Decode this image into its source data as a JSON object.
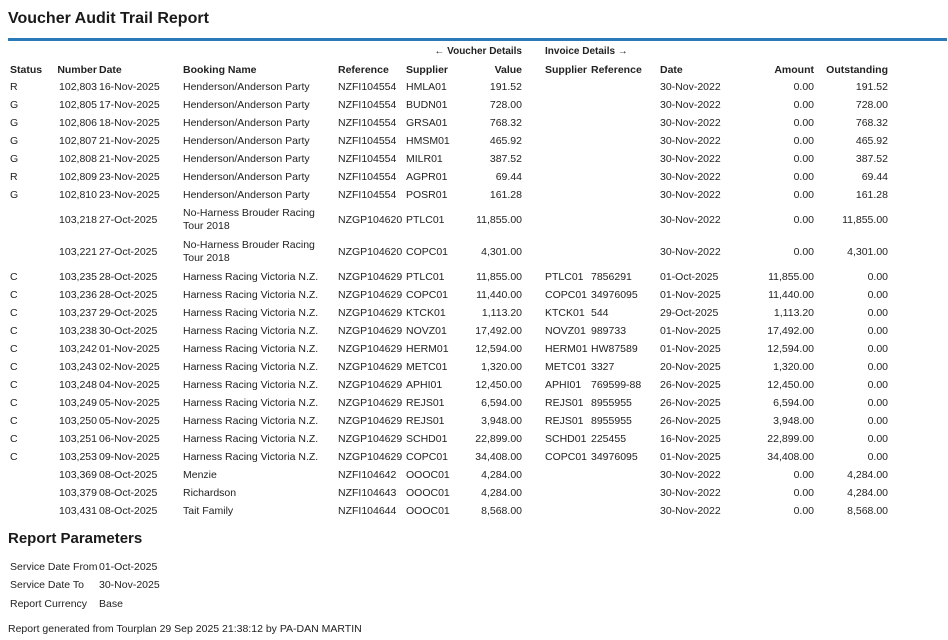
{
  "title": "Voucher Audit Trail Report",
  "group_headers": [
    "← Voucher Details",
    "Invoice Details →"
  ],
  "columns": [
    "Status",
    "Number",
    "Date",
    "Booking Name",
    "Reference",
    "Supplier",
    "Value",
    "Supplier",
    "Reference",
    "Date",
    "Amount",
    "Outstanding"
  ],
  "rows": [
    [
      "R",
      "102,803",
      "16-Nov-2025",
      "Henderson/Anderson Party",
      "NZFI104554",
      "HMLA01",
      "191.52",
      null,
      null,
      "30-Nov-2022",
      "0.00",
      "191.52"
    ],
    [
      "G",
      "102,805",
      "17-Nov-2025",
      "Henderson/Anderson Party",
      "NZFI104554",
      "BUDN01",
      "728.00",
      null,
      null,
      "30-Nov-2022",
      "0.00",
      "728.00"
    ],
    [
      "G",
      "102,806",
      "18-Nov-2025",
      "Henderson/Anderson Party",
      "NZFI104554",
      "GRSA01",
      "768.32",
      null,
      null,
      "30-Nov-2022",
      "0.00",
      "768.32"
    ],
    [
      "G",
      "102,807",
      "21-Nov-2025",
      "Henderson/Anderson Party",
      "NZFI104554",
      "HMSM01",
      "465.92",
      null,
      null,
      "30-Nov-2022",
      "0.00",
      "465.92"
    ],
    [
      "G",
      "102,808",
      "21-Nov-2025",
      "Henderson/Anderson Party",
      "NZFI104554",
      "MILR01",
      "387.52",
      null,
      null,
      "30-Nov-2022",
      "0.00",
      "387.52"
    ],
    [
      "R",
      "102,809",
      "23-Nov-2025",
      "Henderson/Anderson Party",
      "NZFI104554",
      "AGPR01",
      "69.44",
      null,
      null,
      "30-Nov-2022",
      "0.00",
      "69.44"
    ],
    [
      "G",
      "102,810",
      "23-Nov-2025",
      "Henderson/Anderson Party",
      "NZFI104554",
      "POSR01",
      "161.28",
      null,
      null,
      "30-Nov-2022",
      "0.00",
      "161.28"
    ],
    [
      null,
      "103,218",
      "27-Oct-2025",
      "No-Harness Brouder Racing Tour 2018",
      "NZGP104620",
      "PTLC01",
      "11,855.00",
      null,
      null,
      "30-Nov-2022",
      "0.00",
      "11,855.00"
    ],
    [
      null,
      "103,221",
      "27-Oct-2025",
      "No-Harness Brouder Racing Tour 2018",
      "NZGP104620",
      "COPC01",
      "4,301.00",
      null,
      null,
      "30-Nov-2022",
      "0.00",
      "4,301.00"
    ],
    [
      "C",
      "103,235",
      "28-Oct-2025",
      "Harness Racing Victoria N.Z.",
      "NZGP104629",
      "PTLC01",
      "11,855.00",
      "PTLC01",
      "7856291",
      "01-Oct-2025",
      "11,855.00",
      "0.00"
    ],
    [
      "C",
      "103,236",
      "28-Oct-2025",
      "Harness Racing Victoria N.Z.",
      "NZGP104629",
      "COPC01",
      "11,440.00",
      "COPC01",
      "34976095",
      "01-Nov-2025",
      "11,440.00",
      "0.00"
    ],
    [
      "C",
      "103,237",
      "29-Oct-2025",
      "Harness Racing Victoria N.Z.",
      "NZGP104629",
      "KTCK01",
      "1,113.20",
      "KTCK01",
      "544",
      "29-Oct-2025",
      "1,113.20",
      "0.00"
    ],
    [
      "C",
      "103,238",
      "30-Oct-2025",
      "Harness Racing Victoria N.Z.",
      "NZGP104629",
      "NOVZ01",
      "17,492.00",
      "NOVZ01",
      "989733",
      "01-Nov-2025",
      "17,492.00",
      "0.00"
    ],
    [
      "C",
      "103,242",
      "01-Nov-2025",
      "Harness Racing Victoria N.Z.",
      "NZGP104629",
      "HERM01",
      "12,594.00",
      "HERM01",
      "HW87589",
      "01-Nov-2025",
      "12,594.00",
      "0.00"
    ],
    [
      "C",
      "103,243",
      "02-Nov-2025",
      "Harness Racing Victoria N.Z.",
      "NZGP104629",
      "METC01",
      "1,320.00",
      "METC01",
      "3327",
      "20-Nov-2025",
      "1,320.00",
      "0.00"
    ],
    [
      "C",
      "103,248",
      "04-Nov-2025",
      "Harness Racing Victoria N.Z.",
      "NZGP104629",
      "APHI01",
      "12,450.00",
      "APHI01",
      "769599-88",
      "26-Nov-2025",
      "12,450.00",
      "0.00"
    ],
    [
      "C",
      "103,249",
      "05-Nov-2025",
      "Harness Racing Victoria N.Z.",
      "NZGP104629",
      "REJS01",
      "6,594.00",
      "REJS01",
      "8955955",
      "26-Nov-2025",
      "6,594.00",
      "0.00"
    ],
    [
      "C",
      "103,250",
      "05-Nov-2025",
      "Harness Racing Victoria N.Z.",
      "NZGP104629",
      "REJS01",
      "3,948.00",
      "REJS01",
      "8955955",
      "26-Nov-2025",
      "3,948.00",
      "0.00"
    ],
    [
      "C",
      "103,251",
      "06-Nov-2025",
      "Harness Racing Victoria N.Z.",
      "NZGP104629",
      "SCHD01",
      "22,899.00",
      "SCHD01",
      "225455",
      "16-Nov-2025",
      "22,899.00",
      "0.00"
    ],
    [
      "C",
      "103,253",
      "09-Nov-2025",
      "Harness Racing Victoria N.Z.",
      "NZGP104629",
      "COPC01",
      "34,408.00",
      "COPC01",
      "34976095",
      "01-Nov-2025",
      "34,408.00",
      "0.00"
    ],
    [
      null,
      "103,369",
      "08-Oct-2025",
      "Menzie",
      "NZFI104642",
      "OOOC01",
      "4,284.00",
      null,
      null,
      "30-Nov-2022",
      "0.00",
      "4,284.00"
    ],
    [
      null,
      "103,379",
      "08-Oct-2025",
      "Richardson",
      "NZFI104643",
      "OOOC01",
      "4,284.00",
      null,
      null,
      "30-Nov-2022",
      "0.00",
      "4,284.00"
    ],
    [
      null,
      "103,431",
      "08-Oct-2025",
      "Tait Family",
      "NZFI104644",
      "OOOC01",
      "8,568.00",
      null,
      null,
      "30-Nov-2022",
      "0.00",
      "8,568.00"
    ]
  ],
  "parameters_title": "Report Parameters",
  "parameters": [
    [
      "Service Date From",
      "01-Oct-2025"
    ],
    [
      "Service Date To",
      "30-Nov-2025"
    ],
    [
      "Report Currency",
      "Base"
    ]
  ],
  "footer": "Report generated from Tourplan 29 Sep 2025 21:38:12 by PA-DAN MARTIN"
}
